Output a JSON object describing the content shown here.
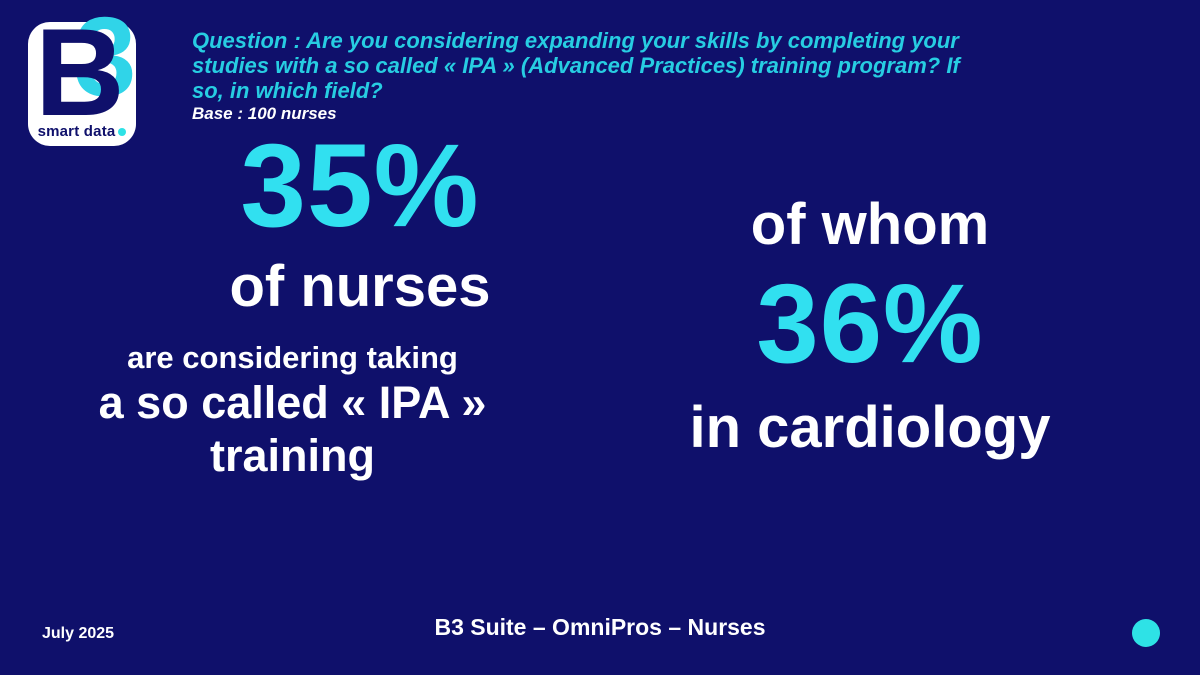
{
  "colors": {
    "background": "#0f106b",
    "accent_cyan": "#31e0f0",
    "question_cyan": "#27cde2",
    "dot_cyan": "#2ee2e6",
    "text_white": "#ffffff",
    "logo_navy": "#0f106b"
  },
  "logo": {
    "letter": "B",
    "digit": "3",
    "caption": "smart data"
  },
  "question": {
    "lines": [
      "Question : Are you considering expanding your skills by completing your",
      "studies with a so called « IPA » (Advanced Practices) training program? If",
      "so, in which field?"
    ],
    "base": "Base : 100 nurses"
  },
  "left_stat": {
    "value": "35%",
    "subject": "of nurses",
    "line1": "are considering taking",
    "line2": "a so called « IPA »",
    "line3": "training"
  },
  "right_stat": {
    "intro": "of whom",
    "value": "36%",
    "detail": "in cardiology"
  },
  "footer": {
    "date": "July 2025",
    "title": "B3 Suite – OmniPros – Nurses"
  }
}
